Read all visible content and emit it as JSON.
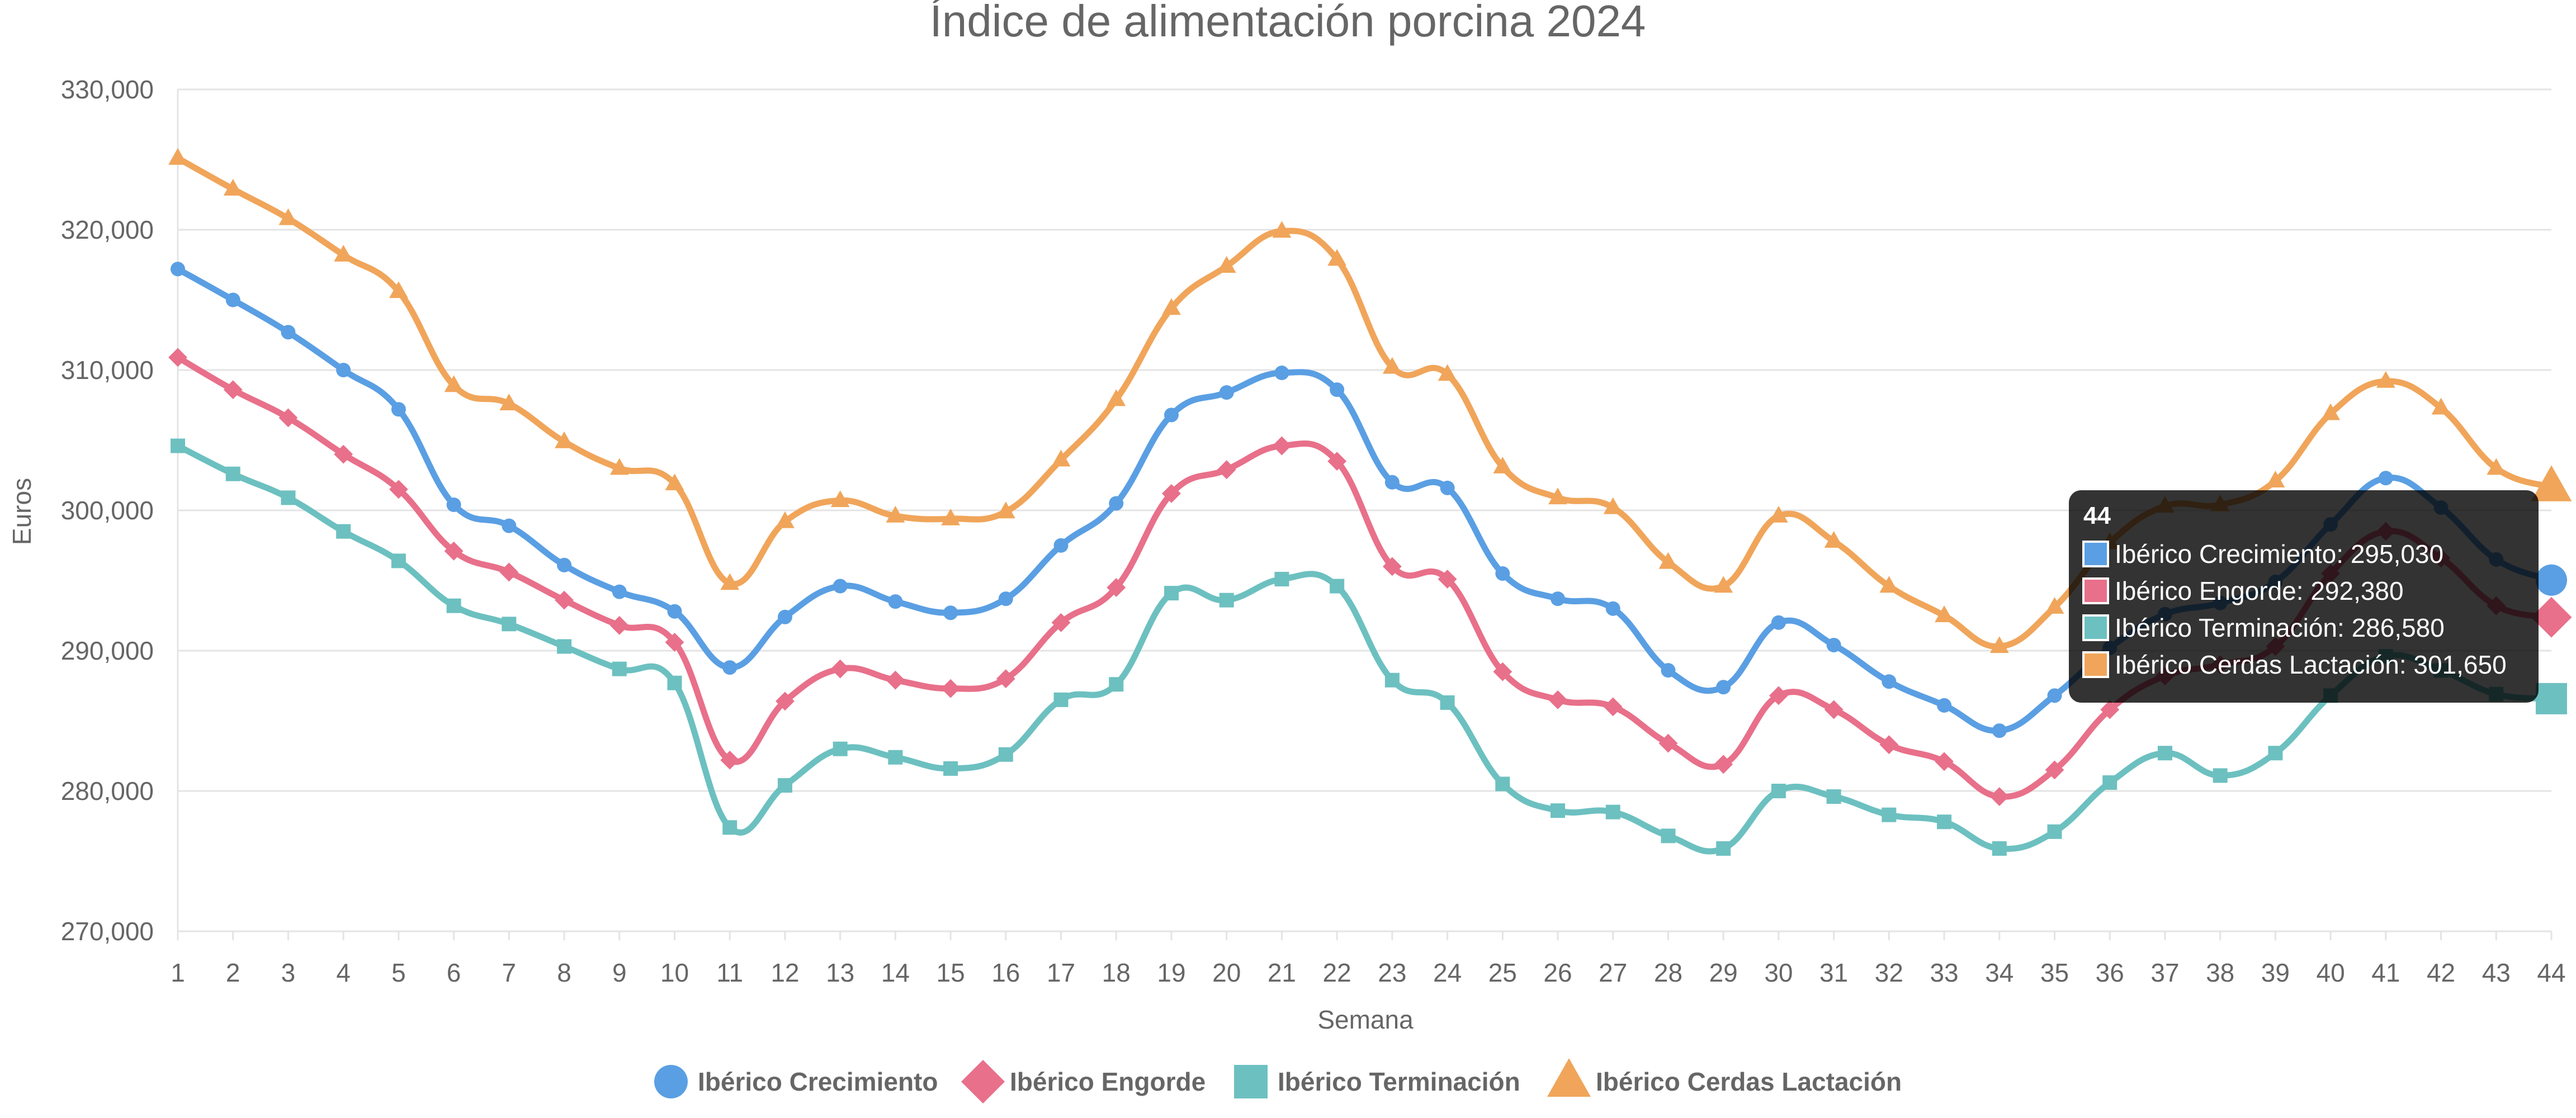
{
  "chart_data": {
    "type": "line",
    "title": "Índice de alimentación porcina 2024",
    "xlabel": "Semana",
    "ylabel": "Euros",
    "ylim": [
      270000,
      330000
    ],
    "y_ticks": [
      270000,
      280000,
      290000,
      300000,
      310000,
      320000,
      330000
    ],
    "y_tick_labels": [
      "270,000",
      "280,000",
      "290,000",
      "300,000",
      "310,000",
      "320,000",
      "330,000"
    ],
    "grid": true,
    "legend_position": "bottom",
    "categories": [
      "1",
      "2",
      "3",
      "4",
      "5",
      "6",
      "7",
      "8",
      "9",
      "10",
      "11",
      "12",
      "13",
      "14",
      "15",
      "16",
      "17",
      "18",
      "19",
      "20",
      "21",
      "22",
      "23",
      "24",
      "25",
      "26",
      "27",
      "28",
      "29",
      "30",
      "31",
      "32",
      "33",
      "34",
      "35",
      "36",
      "37",
      "38",
      "39",
      "40",
      "41",
      "42",
      "43",
      "44"
    ],
    "series": [
      {
        "name": "Ibérico Crecimiento",
        "color": "#5a9fe3",
        "marker": "circle",
        "values": [
          317200,
          315000,
          312700,
          310000,
          307200,
          300400,
          298900,
          296100,
          294200,
          292800,
          288800,
          292400,
          294600,
          293500,
          292700,
          293700,
          297500,
          300500,
          306800,
          308400,
          309800,
          308600,
          302000,
          301600,
          295500,
          293700,
          293000,
          288600,
          287400,
          292000,
          290400,
          287800,
          286100,
          284300,
          286800,
          290200,
          292600,
          293400,
          294900,
          299000,
          302300,
          300200,
          296500,
          295030
        ]
      },
      {
        "name": "Ibérico Engorde",
        "color": "#e8708a",
        "marker": "diamond",
        "values": [
          310900,
          308600,
          306600,
          304000,
          301500,
          297100,
          295600,
          293600,
          291800,
          290600,
          282200,
          286400,
          288700,
          287900,
          287300,
          288000,
          292000,
          294500,
          301200,
          302900,
          304600,
          303500,
          296000,
          295100,
          288500,
          286500,
          286000,
          283400,
          281900,
          286800,
          285800,
          283300,
          282100,
          279600,
          281500,
          285800,
          288200,
          289000,
          290300,
          295500,
          298500,
          296600,
          293200,
          292380
        ]
      },
      {
        "name": "Ibérico Terminación",
        "color": "#6dc0c0",
        "marker": "square",
        "values": [
          304600,
          302600,
          300900,
          298500,
          296400,
          293200,
          291900,
          290300,
          288700,
          287700,
          277400,
          280400,
          283000,
          282400,
          281600,
          282600,
          286500,
          287600,
          294100,
          293600,
          295100,
          294600,
          287900,
          286300,
          280500,
          278600,
          278500,
          276800,
          275900,
          280000,
          279600,
          278300,
          277800,
          275900,
          277100,
          280600,
          282700,
          281100,
          282700,
          286800,
          289600,
          288600,
          286900,
          286580
        ]
      },
      {
        "name": "Ibérico Cerdas Lactación",
        "color": "#f0a55a",
        "marker": "triangle",
        "values": [
          325100,
          322900,
          320800,
          318200,
          315600,
          308900,
          307600,
          304900,
          303000,
          301900,
          294800,
          299200,
          300700,
          299600,
          299400,
          299900,
          303600,
          307900,
          314400,
          317400,
          319900,
          317900,
          310200,
          309700,
          303100,
          300900,
          300200,
          296300,
          294600,
          299600,
          297800,
          294600,
          292500,
          290300,
          293100,
          297700,
          300300,
          300400,
          302100,
          306900,
          309200,
          307300,
          303000,
          301650
        ]
      }
    ],
    "tooltip": {
      "title": "44",
      "lines": [
        "Ibérico Crecimiento: 295,030",
        "Ibérico Engorde: 292,380",
        "Ibérico Terminación: 286,580",
        "Ibérico Cerdas Lactación: 301,650"
      ]
    }
  }
}
